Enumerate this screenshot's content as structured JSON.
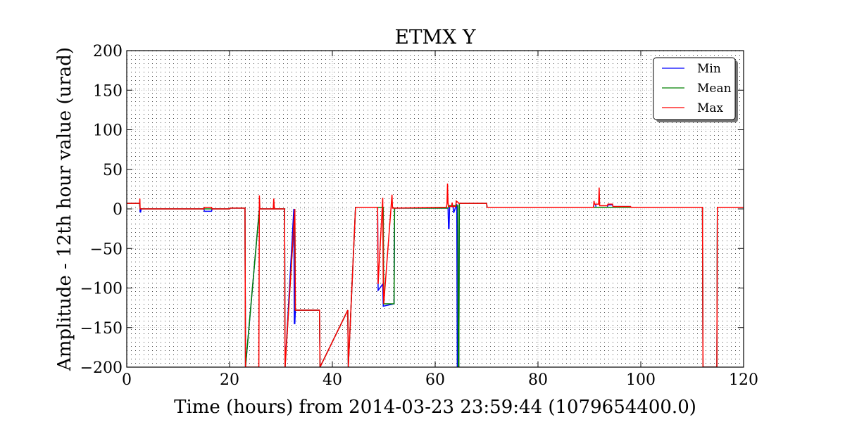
{
  "chart_data": {
    "type": "line",
    "title": "ETMX Y",
    "xlabel": "Time (hours) from 2014-03-23 23:59:44 (1079654400.0)",
    "ylabel": "Amplitude - 12th hour value (urad)",
    "xlim": [
      0,
      120
    ],
    "ylim": [
      -200,
      200
    ],
    "xticks": [
      "0",
      "20",
      "40",
      "60",
      "80",
      "100",
      "120"
    ],
    "yticks": [
      "200",
      "150",
      "100",
      "50",
      "0",
      "−50",
      "−100",
      "−150",
      "−200"
    ],
    "grid": true,
    "legend_position": "top-right",
    "series": [
      {
        "name": "Min",
        "color": "#0000ff",
        "x": [
          0,
          2.5,
          2.6,
          2.7,
          2.8,
          15,
          15.1,
          16.5,
          16.6,
          20,
          20.1,
          23,
          23.1,
          25.8,
          25.9,
          28.5,
          28.6,
          30.7,
          30.8,
          32.5,
          32.6,
          32.7,
          32.8,
          37.5,
          37.6,
          43,
          43.1,
          44.5,
          44.6,
          48.8,
          48.9,
          49.8,
          49.9,
          52,
          52.1,
          62.5,
          62.6,
          62.7,
          62.8,
          63.5,
          63.6,
          64.2,
          64.3,
          64.6,
          64.7,
          70,
          70.1,
          90.8,
          90.9,
          91.2,
          91.3,
          92.5,
          92.6,
          93.5,
          93.6,
          94.5,
          94.6,
          98,
          98.1,
          112,
          112.1,
          114.8,
          114.9,
          120
        ],
        "y": [
          7,
          7,
          -4,
          -4,
          0,
          0,
          -3,
          -3,
          0,
          0,
          1,
          1,
          -200,
          0,
          0,
          0,
          0,
          0,
          -200,
          0,
          -145,
          -145,
          -128,
          -128,
          -200,
          -128,
          -200,
          1,
          2,
          2,
          -103,
          -95,
          -123,
          -120,
          1,
          1,
          -25,
          -25,
          3,
          3,
          -5,
          6,
          -200,
          -200,
          7,
          7,
          2,
          2,
          6,
          6,
          2,
          2,
          2,
          2,
          5,
          5,
          3,
          3,
          2,
          2,
          -200,
          -200,
          2,
          2
        ]
      },
      {
        "name": "Mean",
        "color": "#008000",
        "x": [
          0,
          2.5,
          2.6,
          15,
          16.5,
          20,
          20.1,
          23,
          23.1,
          25.8,
          25.9,
          28.5,
          28.6,
          30.7,
          30.8,
          32.7,
          32.8,
          37.5,
          37.6,
          43,
          43.1,
          44.5,
          44.6,
          49.9,
          50,
          52,
          52.1,
          62.5,
          62.6,
          64.4,
          64.5,
          64.6,
          64.7,
          70,
          70.1,
          112,
          112.1,
          114.8,
          114.9,
          120
        ],
        "y": [
          7,
          7,
          0,
          0,
          0,
          0,
          1,
          1,
          -200,
          0,
          0,
          0,
          0,
          0,
          -200,
          0,
          -128,
          -128,
          -200,
          -128,
          -200,
          1,
          2,
          2,
          -120,
          -120,
          1,
          1,
          4,
          4,
          -200,
          -200,
          7,
          7,
          2,
          2,
          -200,
          -200,
          2,
          2
        ]
      },
      {
        "name": "Max",
        "color": "#ff0000",
        "x": [
          0,
          2.5,
          2.55,
          2.6,
          2.7,
          15,
          15.1,
          16.5,
          16.6,
          20,
          20.1,
          23,
          23.1,
          25.7,
          25.8,
          25.9,
          28.5,
          28.6,
          28.7,
          30.7,
          30.8,
          32.7,
          32.8,
          37.5,
          37.6,
          43,
          43.1,
          44.5,
          44.6,
          48.8,
          48.9,
          49.8,
          49.9,
          50.0,
          51.6,
          51.7,
          52,
          52.1,
          62.2,
          62.3,
          62.4,
          62.5,
          62.6,
          63.2,
          63.3,
          63.4,
          64.0,
          64.1,
          64.5,
          64.6,
          70,
          70.1,
          90.8,
          90.9,
          91.0,
          91.8,
          91.9,
          92.0,
          93.5,
          93.6,
          94.5,
          94.6,
          98,
          98.1,
          112,
          112.1,
          114.8,
          114.9,
          120
        ],
        "y": [
          7,
          7,
          13,
          0,
          0,
          0,
          2,
          2,
          0,
          0,
          1,
          1,
          -200,
          -200,
          17,
          0,
          0,
          13,
          0,
          0,
          -200,
          0,
          -128,
          -128,
          -200,
          -128,
          -200,
          1,
          2,
          2,
          -95,
          14,
          -95,
          -120,
          18,
          1,
          1,
          1,
          2,
          6,
          32,
          8,
          3,
          3,
          8,
          3,
          3,
          10,
          8,
          7,
          7,
          2,
          2,
          10,
          6,
          6,
          27,
          4,
          4,
          6,
          6,
          3,
          3,
          2,
          2,
          -200,
          -200,
          2,
          2
        ]
      }
    ]
  }
}
